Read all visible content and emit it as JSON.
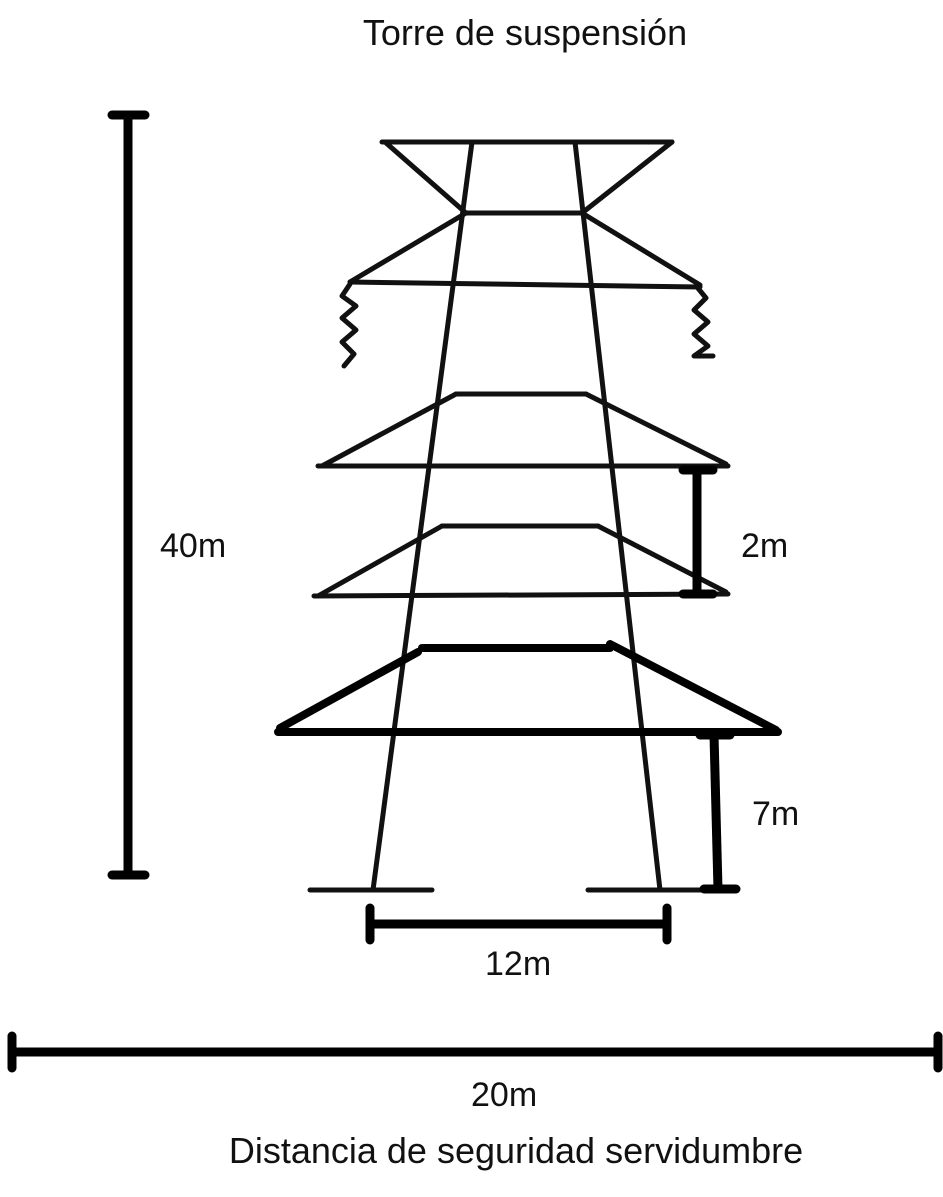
{
  "title": "Torre de suspensión",
  "subtitle": "Distancia de seguridad servidumbre",
  "dimensions": {
    "height_total": "40m",
    "arm_spacing": "2m",
    "ground_clearance": "7m",
    "base_width": "12m",
    "right_of_way": "20m"
  },
  "colors": {
    "ink": "#111111",
    "background": "#ffffff"
  }
}
